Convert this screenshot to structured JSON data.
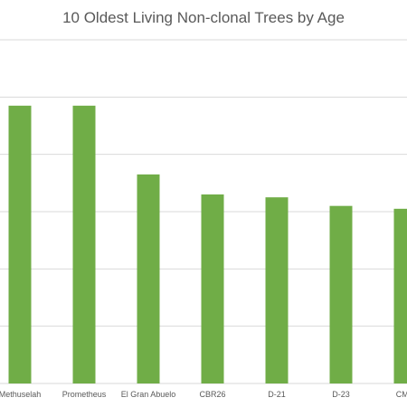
{
  "chart_data": {
    "type": "bar",
    "title": "10 Oldest Living Non-clonal Trees by Age",
    "categories": [
      "Methuselah",
      "Prometheus",
      "El Gran Abuelo",
      "CBR26",
      "D-21",
      "D-23",
      "CMC"
    ],
    "values": [
      4850,
      4850,
      3650,
      3300,
      3250,
      3100,
      3050
    ],
    "ylim": [
      0,
      6000
    ],
    "grid": true,
    "bar_color": "#70ad47",
    "grid_color": "#d9d9d9"
  }
}
